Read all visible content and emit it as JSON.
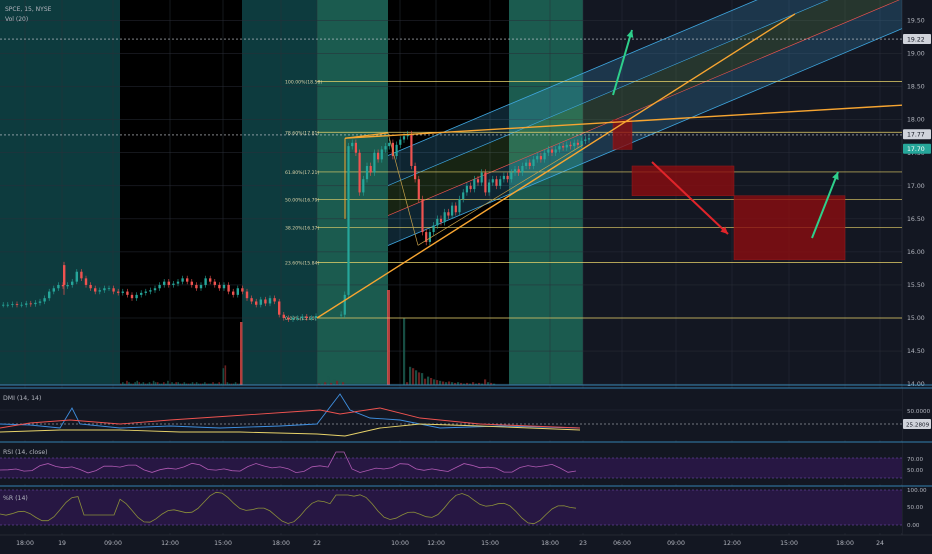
{
  "header": {
    "symbol": "SPCE, 15, NYSE",
    "volume_label": "Vol (20)"
  },
  "colors": {
    "background": "#131722",
    "up": "#26a69a",
    "down": "#ef5350",
    "fib": "#e8d36a",
    "trend": "#f7a531",
    "channel": "#3fa7e0",
    "arrow_up": "#2ecf8b",
    "arrow_down": "#e0242a"
  },
  "chart_data": [
    {
      "type": "candlestick",
      "title": "SPCE, 15, NYSE",
      "ylim": [
        14.0,
        19.6
      ],
      "y_ticks": [
        "19.50",
        "19.00",
        "18.50",
        "18.00",
        "17.50",
        "17.00",
        "16.50",
        "16.00",
        "15.50",
        "15.00",
        "14.50",
        "14.00"
      ],
      "x_ticks": [
        "18:00",
        "19",
        "09:00",
        "12:00",
        "15:00",
        "18:00",
        "22",
        "10:00",
        "12:00",
        "15:00",
        "18:00",
        "23",
        "06:00",
        "09:00",
        "12:00",
        "15:00",
        "18:00",
        "24"
      ],
      "price_tags": [
        "19.22",
        "17.77",
        "17.70"
      ],
      "fib_levels": [
        {
          "label": "100.00%(18.58)",
          "price": 18.58
        },
        {
          "label": "78.60%(17.81)",
          "price": 17.81
        },
        {
          "label": "61.80%(17.21)",
          "price": 17.21
        },
        {
          "label": "50.00%(16.79)",
          "price": 16.79
        },
        {
          "label": "38.20%(16.37)",
          "price": 16.37
        },
        {
          "label": "23.60%(15.84)",
          "price": 15.84
        },
        {
          "label": "0.00%(15.00)",
          "price": 15.0
        }
      ],
      "dashed_levels": [
        19.22,
        17.77
      ],
      "closes_day1": [
        15.2,
        15.2,
        15.21,
        15.2,
        15.2,
        15.22,
        15.21,
        15.23,
        15.25,
        15.3,
        15.4,
        15.45,
        15.5,
        15.48,
        15.5,
        15.55,
        15.7,
        15.6,
        15.5,
        15.45,
        15.4,
        15.42,
        15.45,
        15.45,
        15.4,
        15.38,
        15.4,
        15.35,
        15.3,
        15.35,
        15.38,
        15.4,
        15.42,
        15.45,
        15.5,
        15.55,
        15.5,
        15.52,
        15.55,
        15.6,
        15.55,
        15.5,
        15.45,
        15.5,
        15.6,
        15.55,
        15.5,
        15.45,
        15.5,
        15.4,
        15.35,
        15.45,
        15.4,
        15.3,
        15.25,
        15.2,
        15.28,
        15.22,
        15.3,
        15.25,
        15.05,
        15.0,
        14.98,
        15.0,
        15.0,
        15.02,
        15.0,
        15.0,
        15.03,
        15.0,
        15.0,
        15.02
      ],
      "closes_day2": [
        15.05,
        15.35,
        17.6,
        17.65,
        17.5,
        16.9,
        17.1,
        17.3,
        17.2,
        17.5,
        17.4,
        17.55,
        17.6,
        17.65,
        17.45,
        17.62,
        17.7,
        17.75,
        17.78,
        17.3,
        17.1,
        16.8,
        16.3,
        16.15,
        16.3,
        16.4,
        16.5,
        16.45,
        16.6,
        16.55,
        16.7,
        16.6,
        16.8,
        16.9,
        17.0,
        16.95,
        17.1,
        17.05,
        17.2,
        16.9,
        17.05,
        17.1,
        17.0,
        17.1,
        17.15,
        17.1,
        17.2,
        17.25,
        17.2,
        17.3,
        17.35,
        17.3,
        17.4,
        17.45,
        17.4,
        17.5,
        17.55,
        17.5,
        17.55,
        17.6,
        17.58,
        17.62,
        17.6,
        17.65,
        17.62,
        17.68,
        17.7,
        17.72
      ],
      "boxes": [
        {
          "price_from": 17.55,
          "price_to": 18.0,
          "kind": "down"
        },
        {
          "price_from": 16.85,
          "price_to": 17.3,
          "kind": "down"
        },
        {
          "price_from": 15.88,
          "price_to": 16.85,
          "kind": "down"
        }
      ]
    },
    {
      "type": "line",
      "title": "DMI (14, 14)",
      "ylim": [
        0,
        60
      ],
      "y_ticks": [
        "50.0000"
      ],
      "value_tag": "25.2809",
      "series": [
        {
          "name": "+DI",
          "color": "#3f8fe0"
        },
        {
          "name": "-DI",
          "color": "#ef5350"
        },
        {
          "name": "ADX",
          "color": "#e8d36a"
        }
      ]
    },
    {
      "type": "line",
      "title": "RSI (14, close)",
      "ylim": [
        0,
        100
      ],
      "y_ticks": [
        "70.00",
        "50.00"
      ]
    },
    {
      "type": "line",
      "title": "%R (14)",
      "ylim": [
        -100,
        0
      ],
      "y_ticks": [
        "100.00",
        "50.00",
        "0.00"
      ]
    }
  ]
}
